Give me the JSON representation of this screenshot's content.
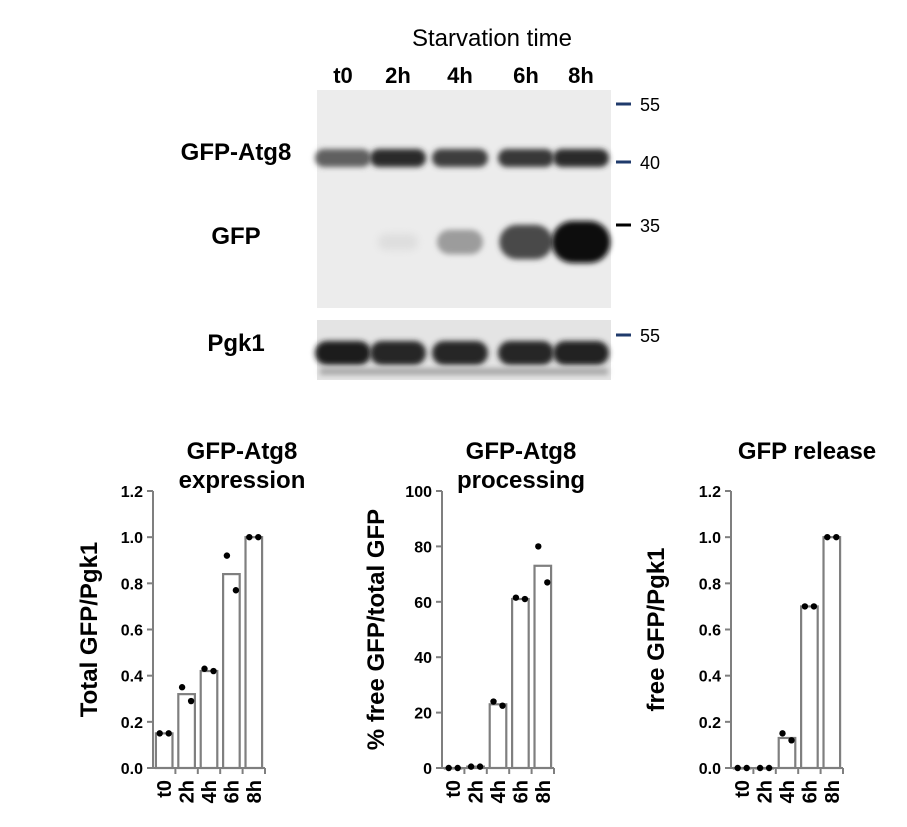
{
  "blot": {
    "title": "Starvation time",
    "lanes": [
      "t0",
      "2h",
      "4h",
      "6h",
      "8h"
    ],
    "bands": [
      {
        "label": "GFP-Atg8",
        "intensity": [
          0.62,
          0.85,
          0.78,
          0.8,
          0.86
        ]
      },
      {
        "label": "GFP",
        "intensity": [
          0.0,
          0.06,
          0.35,
          0.72,
          1.0
        ]
      },
      {
        "label": "Pgk1",
        "intensity": [
          0.92,
          0.88,
          0.88,
          0.88,
          0.9
        ]
      }
    ],
    "markers": [
      {
        "label": "55",
        "color": "#1f3a6b"
      },
      {
        "label": "40",
        "color": "#1f3a6b"
      },
      {
        "label": "35",
        "color": "#000000"
      },
      {
        "label": "55",
        "color": "#1f3a6b"
      }
    ]
  },
  "chart_data": [
    {
      "type": "bar",
      "title": "GFP-Atg8 expression",
      "ylabel": "Total GFP/Pgk1",
      "categories": [
        "t0",
        "2h",
        "4h",
        "6h",
        "8h"
      ],
      "values": [
        0.15,
        0.32,
        0.42,
        0.84,
        1.0
      ],
      "points": [
        [
          0.15,
          0.15
        ],
        [
          0.35,
          0.29
        ],
        [
          0.43,
          0.42
        ],
        [
          0.92,
          0.77
        ],
        [
          1.0,
          1.0
        ]
      ],
      "ylim": [
        0,
        1.2
      ],
      "yticks": [
        "0.0",
        "0.2",
        "0.4",
        "0.6",
        "0.8",
        "1.0",
        "1.2"
      ]
    },
    {
      "type": "bar",
      "title": "GFP-Atg8 processing",
      "ylabel": "% free GFP/total GFP",
      "categories": [
        "t0",
        "2h",
        "4h",
        "6h",
        "8h"
      ],
      "values": [
        0,
        0.5,
        23,
        61,
        73
      ],
      "points": [
        [
          0,
          0
        ],
        [
          0.5,
          0.5
        ],
        [
          24,
          22.5
        ],
        [
          61.5,
          61
        ],
        [
          80,
          67
        ]
      ],
      "ylim": [
        0,
        100
      ],
      "yticks": [
        "0",
        "20",
        "40",
        "60",
        "80",
        "100"
      ]
    },
    {
      "type": "bar",
      "title": "GFP release",
      "ylabel": "free GFP/Pgk1",
      "categories": [
        "t0",
        "2h",
        "4h",
        "6h",
        "8h"
      ],
      "values": [
        0,
        0,
        0.13,
        0.7,
        1.0
      ],
      "points": [
        [
          0,
          0
        ],
        [
          0,
          0
        ],
        [
          0.15,
          0.12
        ],
        [
          0.7,
          0.7
        ],
        [
          1.0,
          1.0
        ]
      ],
      "ylim": [
        0,
        1.2
      ],
      "yticks": [
        "0.0",
        "0.2",
        "0.4",
        "0.6",
        "0.8",
        "1.0",
        "1.2"
      ]
    }
  ]
}
